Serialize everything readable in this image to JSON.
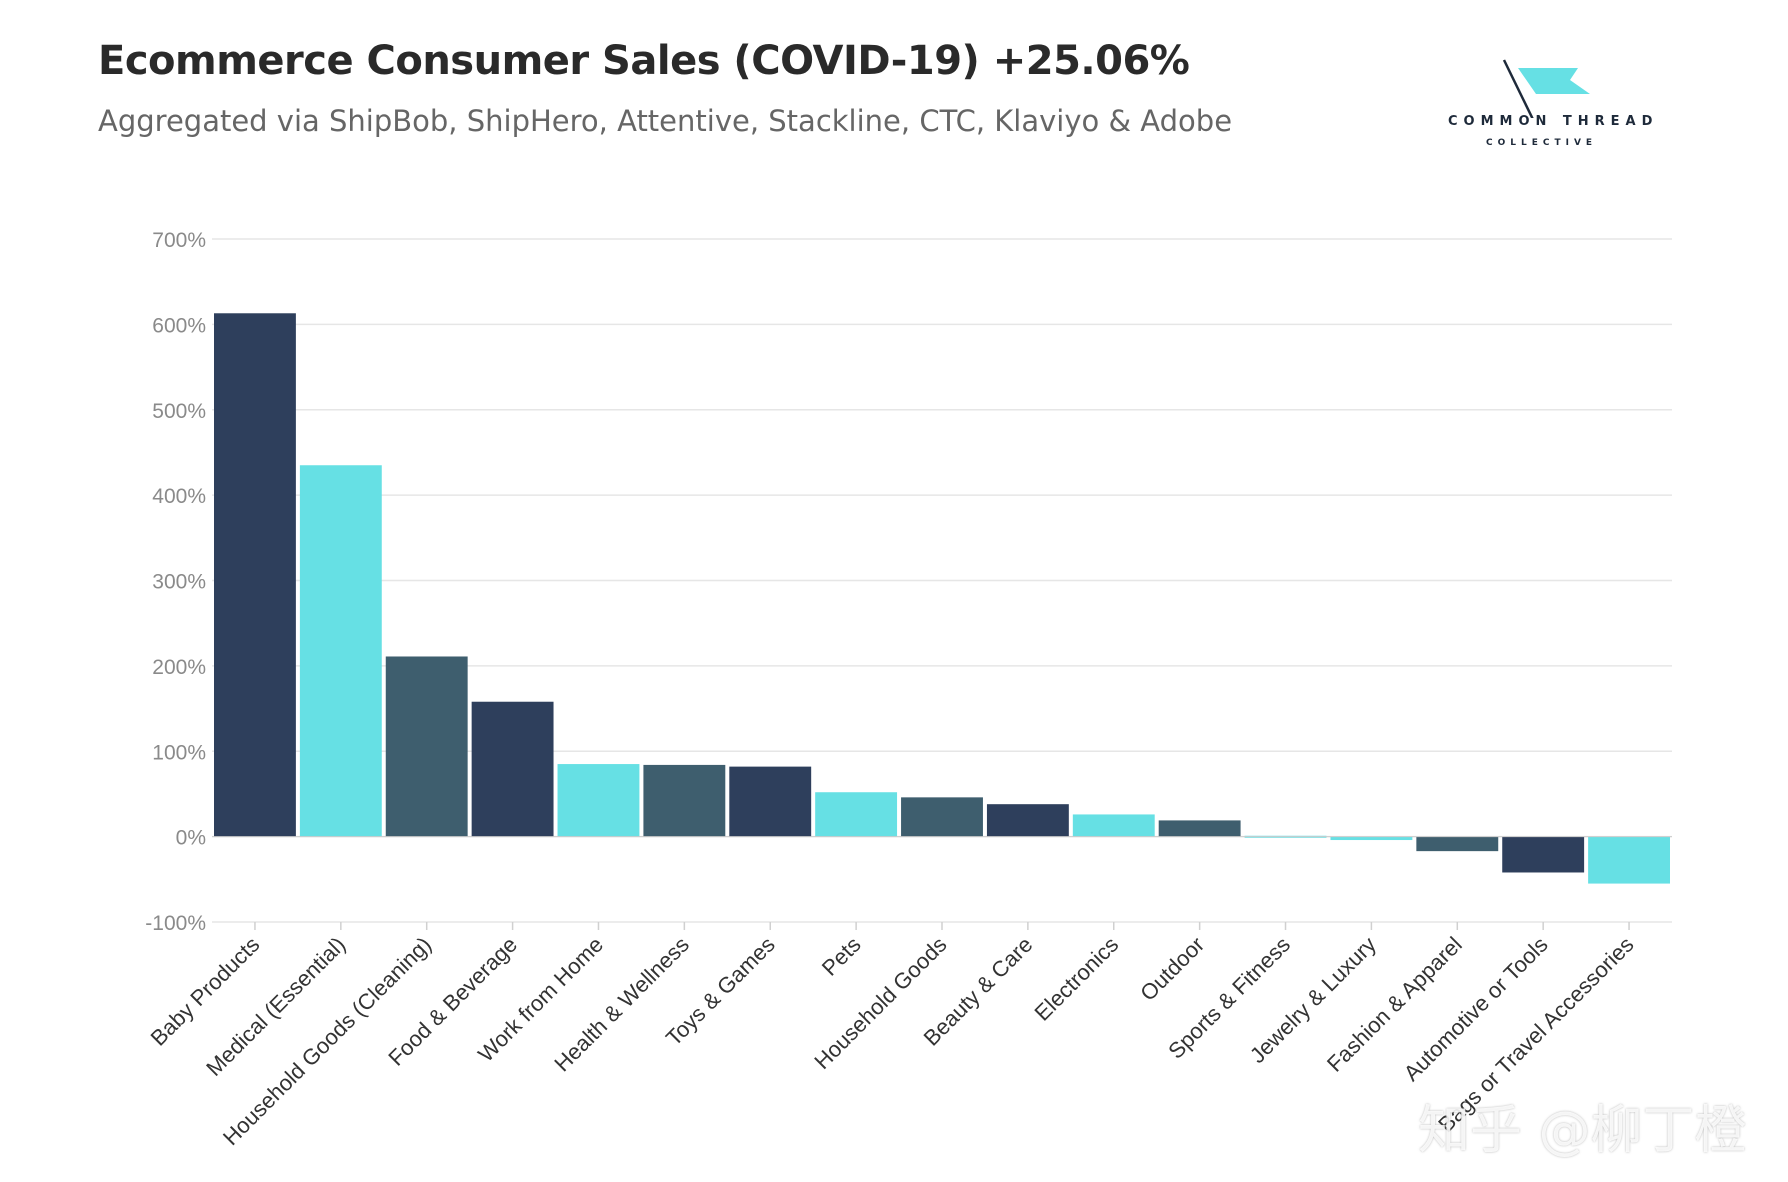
{
  "header": {
    "title": "Ecommerce Consumer Sales (COVID-19) +25.06%",
    "subtitle": "Aggregated via ShipBob, ShipHero, Attentive, Stackline, CTC, Klaviyo & Adobe"
  },
  "logo": {
    "name": "COMMON THREAD",
    "sub": "COLLECTIVE"
  },
  "watermark": "知乎 @柳丁橙",
  "colors": {
    "navy": "#2e3f5c",
    "cyan": "#66e0e4",
    "slate": "#3e5e6e",
    "grid": "#e6e6e6",
    "tick": "#8a8a8a"
  },
  "chart_data": {
    "type": "bar",
    "title": "Ecommerce Consumer Sales (COVID-19) +25.06%",
    "subtitle": "Aggregated via ShipBob, ShipHero, Attentive, Stackline, CTC, Klaviyo & Adobe",
    "xlabel": "",
    "ylabel": "",
    "ylim": [
      -100,
      700
    ],
    "yticks": [
      -100,
      0,
      100,
      200,
      300,
      400,
      500,
      600,
      700
    ],
    "ytick_labels": [
      "-100%",
      "0%",
      "100%",
      "200%",
      "300%",
      "400%",
      "500%",
      "600%",
      "700%"
    ],
    "grid": true,
    "categories": [
      "Baby Products",
      "Medical (Essential)",
      "Household Goods (Cleaning)",
      "Food & Beverage",
      "Work from Home",
      "Health & Wellness",
      "Toys & Games",
      "Pets",
      "Household Goods",
      "Beauty & Care",
      "Electronics",
      "Outdoor",
      "Sports & Fitness",
      "Jewelry & Luxury",
      "Fashion & Apparel",
      "Automotive or Tools",
      "Bags or Travel Accessories"
    ],
    "values": [
      613,
      435,
      211,
      158,
      85,
      84,
      82,
      52,
      46,
      38,
      26,
      19,
      1,
      -4,
      -17,
      -42,
      -55
    ],
    "bar_colors": [
      "#2e3f5c",
      "#66e0e4",
      "#3e5e6e",
      "#2e3f5c",
      "#66e0e4",
      "#3e5e6e",
      "#2e3f5c",
      "#66e0e4",
      "#3e5e6e",
      "#2e3f5c",
      "#66e0e4",
      "#3e5e6e",
      "#66e0e4",
      "#66e0e4",
      "#3e5e6e",
      "#2e3f5c",
      "#66e0e4"
    ]
  }
}
